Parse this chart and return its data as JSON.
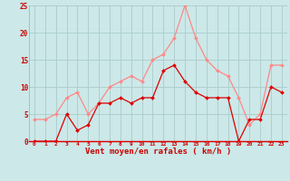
{
  "hours": [
    0,
    1,
    2,
    3,
    4,
    5,
    6,
    7,
    8,
    9,
    10,
    11,
    12,
    13,
    14,
    15,
    16,
    17,
    18,
    19,
    20,
    21,
    22,
    23
  ],
  "vent_moyen": [
    0,
    0,
    0,
    5,
    2,
    3,
    7,
    7,
    8,
    7,
    8,
    8,
    13,
    14,
    11,
    9,
    8,
    8,
    8,
    0,
    4,
    4,
    10,
    9
  ],
  "rafales": [
    4,
    4,
    5,
    8,
    9,
    5,
    7,
    10,
    11,
    12,
    11,
    15,
    16,
    19,
    25,
    19,
    15,
    13,
    12,
    8,
    3,
    5,
    14,
    14
  ],
  "bg_color": "#cce8e8",
  "grid_color": "#aacccc",
  "line_color_moyen": "#dd0000",
  "line_color_rafales": "#ff8888",
  "xlabel": "Vent moyen/en rafales ( km/h )",
  "xlabel_color": "#cc0000",
  "tick_color": "#cc0000",
  "ylim": [
    0,
    25
  ],
  "xlim": [
    -0.5,
    23.5
  ],
  "yticks": [
    0,
    5,
    10,
    15,
    20,
    25
  ],
  "xticks": [
    0,
    1,
    2,
    3,
    4,
    5,
    6,
    7,
    8,
    9,
    10,
    11,
    12,
    13,
    14,
    15,
    16,
    17,
    18,
    19,
    20,
    21,
    22,
    23
  ]
}
